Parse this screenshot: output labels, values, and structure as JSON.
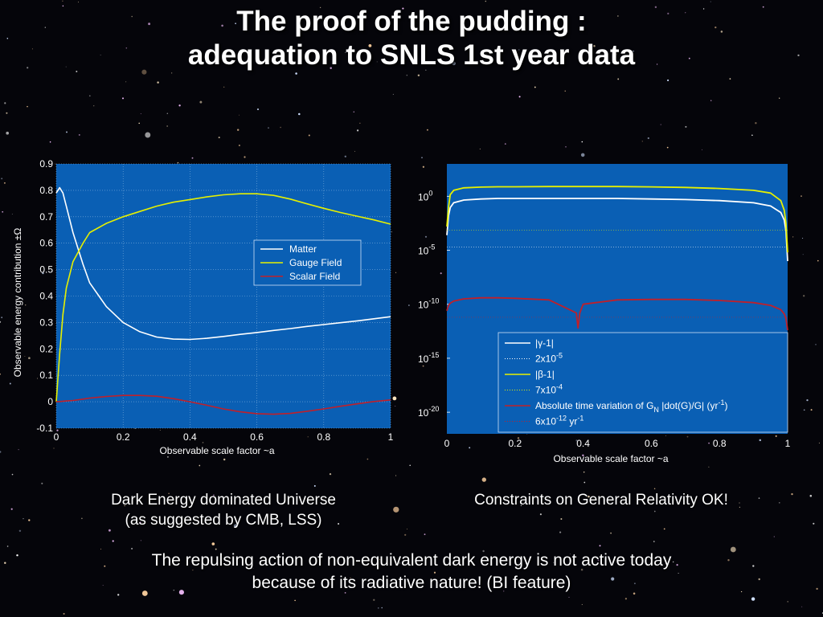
{
  "slide": {
    "title_line1": "The proof of the pudding :",
    "title_line2": "adequation to SNLS 1st year data",
    "caption_left_line1": "Dark Energy dominated Universe",
    "caption_left_line2": "(as suggested by CMB, LSS)",
    "caption_right": "Constraints on General Relativity OK!",
    "caption_bottom_line1": "The repulsing action of non-equivalent dark energy is not active today",
    "caption_bottom_line2": "because of its radiative nature! (BI feature)"
  },
  "colors": {
    "plot_bg": "#0a5fb4",
    "grid": "#7fb0dd",
    "matter": "#ffffff",
    "gauge": "#e6f000",
    "scalar": "#c0202a",
    "axis_text": "#ffffff"
  },
  "chart_data": [
    {
      "type": "line",
      "xlabel": "Observable scale factor ~a",
      "ylabel": "Observable energy contribution ±Ω",
      "xlim": [
        0,
        1
      ],
      "ylim": [
        -0.1,
        0.9
      ],
      "x_ticks": [
        "0",
        "0.2",
        "0.4",
        "0.6",
        "0.8",
        "1"
      ],
      "y_ticks": [
        "-0.1",
        "0",
        "0.1",
        "0.2",
        "0.3",
        "0.4",
        "0.5",
        "0.6",
        "0.7",
        "0.8",
        "0.9"
      ],
      "grid": true,
      "legend_position": "center-right",
      "x": [
        0,
        0.01,
        0.02,
        0.03,
        0.05,
        0.08,
        0.1,
        0.15,
        0.2,
        0.25,
        0.3,
        0.35,
        0.4,
        0.45,
        0.5,
        0.55,
        0.6,
        0.65,
        0.7,
        0.75,
        0.8,
        0.85,
        0.9,
        0.95,
        1
      ],
      "series": [
        {
          "name": "Matter",
          "color_key": "matter",
          "values": [
            0.79,
            0.81,
            0.79,
            0.74,
            0.64,
            0.52,
            0.45,
            0.36,
            0.3,
            0.265,
            0.245,
            0.237,
            0.236,
            0.24,
            0.247,
            0.255,
            0.262,
            0.27,
            0.277,
            0.285,
            0.292,
            0.299,
            0.306,
            0.314,
            0.322
          ]
        },
        {
          "name": "Gauge Field",
          "color_key": "gauge",
          "values": [
            0.0,
            0.18,
            0.33,
            0.43,
            0.53,
            0.6,
            0.64,
            0.675,
            0.7,
            0.72,
            0.74,
            0.755,
            0.765,
            0.775,
            0.783,
            0.787,
            0.787,
            0.781,
            0.767,
            0.749,
            0.732,
            0.716,
            0.702,
            0.688,
            0.672
          ]
        },
        {
          "name": "Scalar Field",
          "color_key": "scalar",
          "values": [
            0.0,
            0.001,
            0.002,
            0.003,
            0.005,
            0.01,
            0.014,
            0.02,
            0.024,
            0.024,
            0.021,
            0.012,
            0.0,
            -0.013,
            -0.027,
            -0.038,
            -0.045,
            -0.047,
            -0.044,
            -0.036,
            -0.027,
            -0.017,
            -0.008,
            0.001,
            0.007
          ]
        }
      ]
    },
    {
      "type": "line",
      "xlabel": "Observable scale factor ~a",
      "y_scale": "log",
      "xlim": [
        0,
        1
      ],
      "ylim_log10": [
        -22,
        3
      ],
      "x_ticks": [
        "0",
        "0.2",
        "0.4",
        "0.6",
        "0.8",
        "1"
      ],
      "y_ticks": [
        {
          "base": "10",
          "exp": "0",
          "log": 0
        },
        {
          "base": "10",
          "exp": "-5",
          "log": -5
        },
        {
          "base": "10",
          "exp": "-10",
          "log": -10
        },
        {
          "base": "10",
          "exp": "-15",
          "log": -15
        },
        {
          "base": "10",
          "exp": "-20",
          "log": -20
        }
      ],
      "grid": false,
      "legend_position": "bottom-right",
      "x": [
        0,
        0.005,
        0.01,
        0.02,
        0.05,
        0.1,
        0.15,
        0.2,
        0.3,
        0.38,
        0.385,
        0.39,
        0.4,
        0.5,
        0.6,
        0.7,
        0.8,
        0.9,
        0.95,
        0.98,
        0.99,
        0.995,
        1
      ],
      "series": [
        {
          "name": "|γ-1|",
          "color_key": "matter",
          "log10_values": [
            -3.6,
            -1.8,
            -1.05,
            -0.6,
            -0.35,
            -0.25,
            -0.2,
            -0.2,
            -0.2,
            -0.2,
            -0.2,
            -0.2,
            -0.2,
            -0.2,
            -0.25,
            -0.3,
            -0.4,
            -0.6,
            -0.9,
            -1.5,
            -2.2,
            -3.2,
            -6.0
          ]
        },
        {
          "name": "2x10-5",
          "color_key": "matter",
          "dotted": true,
          "constant_log10": -4.7
        },
        {
          "name": "|β-1|",
          "color_key": "gauge",
          "log10_values": [
            -2.8,
            -1.0,
            0.15,
            0.55,
            0.78,
            0.85,
            0.88,
            0.88,
            0.9,
            0.9,
            0.9,
            0.9,
            0.9,
            0.9,
            0.87,
            0.82,
            0.72,
            0.55,
            0.3,
            -0.4,
            -1.3,
            -2.5,
            -5.2
          ]
        },
        {
          "name": "7x10-4",
          "color_key": "gauge",
          "dotted": true,
          "constant_log10": -3.15
        },
        {
          "name": "Absolute time variation of GN |dot(G)/G| (yr-1)",
          "color_key": "scalar",
          "log10_values": [
            -10.6,
            -10.1,
            -9.9,
            -9.7,
            -9.5,
            -9.4,
            -9.4,
            -9.45,
            -9.6,
            -10.8,
            -12.2,
            -10.8,
            -10.0,
            -9.6,
            -9.55,
            -9.55,
            -9.65,
            -9.85,
            -10.1,
            -10.5,
            -10.9,
            -11.3,
            -12.4
          ]
        },
        {
          "name": "6x10-12 yr-1",
          "color_key": "scalar",
          "dotted": true,
          "constant_log10": -11.2
        }
      ]
    }
  ]
}
